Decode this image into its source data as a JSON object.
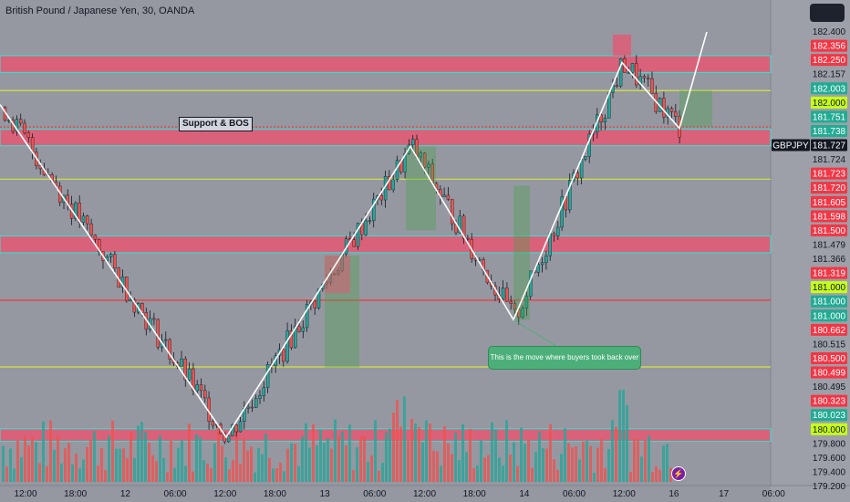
{
  "header": {
    "title": "British Pound / Japanese Yen, 30, OANDA"
  },
  "annotations": {
    "support_label": "Support & BOS",
    "note": "This is the move where buyers took back over"
  },
  "colors": {
    "background": "#9598a1",
    "up": "#26a69a",
    "down": "#ef5350",
    "zone_fill": "#f0506e",
    "zone_border": "#2ee6d6",
    "yellow_line": "#d4e63c",
    "red_line": "#ff2d2d",
    "price_badge": "#131722"
  },
  "chart_data": {
    "type": "candlestick",
    "symbol": "GBPJPY",
    "timeframe": "30",
    "last_price": 181.727,
    "y_range": [
      179.2,
      182.4
    ],
    "x_ticks": [
      "12:00",
      "18:00",
      "12",
      "06:00",
      "12:00",
      "18:00",
      "13",
      "06:00",
      "12:00",
      "18:00",
      "14",
      "06:00",
      "12:00",
      "16",
      "17",
      "06:00"
    ],
    "y_axis_labels": [
      {
        "text": "182.400",
        "style": "plain"
      },
      {
        "text": "182.356",
        "style": "red"
      },
      {
        "text": "182.250",
        "style": "red"
      },
      {
        "text": "182.157",
        "style": "plain"
      },
      {
        "text": "182.003",
        "style": "green"
      },
      {
        "text": "182.000",
        "style": "lime"
      },
      {
        "text": "181.751",
        "style": "green"
      },
      {
        "text": "181.738",
        "style": "green"
      },
      {
        "text": "181.727",
        "style": "dark"
      },
      {
        "text": "181.724",
        "style": "plain"
      },
      {
        "text": "181.723",
        "style": "red"
      },
      {
        "text": "181.720",
        "style": "red"
      },
      {
        "text": "181.605",
        "style": "red"
      },
      {
        "text": "181.598",
        "style": "red"
      },
      {
        "text": "181.500",
        "style": "red"
      },
      {
        "text": "181.479",
        "style": "plain"
      },
      {
        "text": "181.366",
        "style": "plain"
      },
      {
        "text": "181.319",
        "style": "red"
      },
      {
        "text": "181.000",
        "style": "lime"
      },
      {
        "text": "181.000",
        "style": "green"
      },
      {
        "text": "181.000",
        "style": "green"
      },
      {
        "text": "180.662",
        "style": "red"
      },
      {
        "text": "180.515",
        "style": "plain"
      },
      {
        "text": "180.500",
        "style": "red"
      },
      {
        "text": "180.499",
        "style": "red"
      },
      {
        "text": "180.495",
        "style": "plain"
      },
      {
        "text": "180.323",
        "style": "red"
      },
      {
        "text": "180.023",
        "style": "green"
      },
      {
        "text": "180.000",
        "style": "lime"
      },
      {
        "text": "179.800",
        "style": "plain"
      },
      {
        "text": "179.600",
        "style": "plain"
      },
      {
        "text": "179.400",
        "style": "plain"
      },
      {
        "text": "179.200",
        "style": "plain"
      }
    ],
    "zones": [
      {
        "from": 182.13,
        "to": 182.25
      },
      {
        "from": 181.605,
        "to": 181.723
      },
      {
        "from": 180.84,
        "to": 180.96
      },
      {
        "from": 179.49,
        "to": 179.58
      }
    ],
    "yellow_levels": [
      182.0,
      181.366,
      180.023
    ],
    "red_levels": [
      181.74,
      180.5
    ],
    "zigzag_path": [
      [
        0,
        181.9
      ],
      [
        248,
        179.52
      ],
      [
        450,
        181.6
      ],
      [
        563,
        180.36
      ],
      [
        682,
        182.2
      ],
      [
        745,
        181.73
      ],
      [
        775,
        182.42
      ]
    ]
  }
}
